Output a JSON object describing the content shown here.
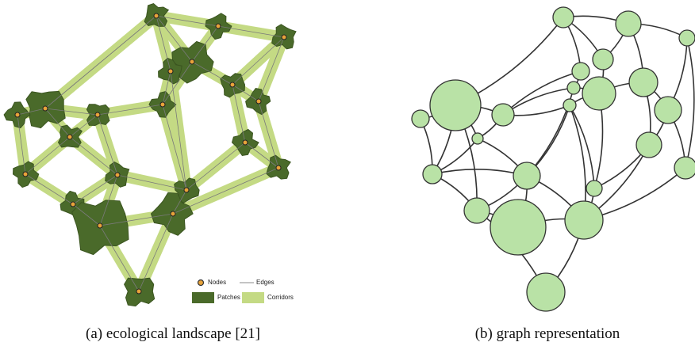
{
  "legend": {
    "nodes": "Nodes",
    "edges": "Edges",
    "patches": "Patches",
    "corridors": "Corridors"
  },
  "captions": {
    "a": "(a) ecological landscape [21]",
    "b": "(b) graph representation"
  }
}
